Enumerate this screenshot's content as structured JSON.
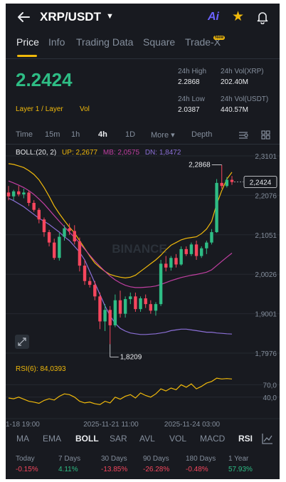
{
  "header": {
    "pair": "XRP/USDT",
    "ai_label": "Ai"
  },
  "tabs": [
    {
      "label": "Price"
    },
    {
      "label": "Info"
    },
    {
      "label": "Trading Data"
    },
    {
      "label": "Square"
    },
    {
      "label": "Trade-X"
    }
  ],
  "new_badge": "New",
  "price": {
    "last": "2.2424",
    "tag1": "Layer 1 / Layer",
    "tag2": "Vol"
  },
  "stats": {
    "high_label": "24h High",
    "high_value": "2.2868",
    "low_label": "24h Low",
    "low_value": "2.0387",
    "vol_xrp_label": "24h Vol(XRP)",
    "vol_xrp_value": "202.40M",
    "vol_usdt_label": "24h Vol(USDT)",
    "vol_usdt_value": "440.57M"
  },
  "timeframes": [
    {
      "label": "Time"
    },
    {
      "label": "15m"
    },
    {
      "label": "1h"
    },
    {
      "label": "4h"
    },
    {
      "label": "1D"
    },
    {
      "label": "More ▾"
    },
    {
      "label": "Depth"
    }
  ],
  "boll_legend": {
    "title": "BOLL:(20, 2)",
    "up": "UP: 2,2677",
    "mb": "MB: 2,0575",
    "dn": "DN: 1,8472"
  },
  "rsi_legend": "RSI(6): 84,0393",
  "watermark": "BINANCE",
  "indicators": [
    {
      "label": "MA"
    },
    {
      "label": "EMA"
    },
    {
      "label": "BOLL"
    },
    {
      "label": "SAR"
    },
    {
      "label": "AVL"
    },
    {
      "label": "VOL"
    },
    {
      "label": "MACD"
    },
    {
      "label": "RSI"
    }
  ],
  "performance": [
    {
      "label": "Today",
      "value": "-0.15%"
    },
    {
      "label": "7 Days",
      "value": "4.11%"
    },
    {
      "label": "30 Days",
      "value": "-13.85%"
    },
    {
      "label": "90 Days",
      "value": "-26.28%"
    },
    {
      "label": "180 Days",
      "value": "-0.48%"
    },
    {
      "label": "1 Year",
      "value": "57.93%"
    }
  ],
  "colors": {
    "up": "#2ebd85",
    "down": "#f6465d",
    "accent": "#f0b90b",
    "mb": "#c03fa1",
    "dn": "#8b6fd6"
  },
  "chart_data": {
    "type": "candlestick",
    "price_axis_ticks": [
      "2,3101",
      "2,2076",
      "2,1051",
      "2,0026",
      "1,9001",
      "1,7976"
    ],
    "ylim": [
      1.7976,
      2.3101
    ],
    "last_price_label": "2,2424",
    "max_label": "2,2868",
    "min_label": "1,8209",
    "rsi_axis_ticks": [
      "70,0",
      "40,0"
    ],
    "x_tick_labels": [
      "1-18 19:00",
      "2025-11-21 11:00",
      "2025-11-24 03:00"
    ],
    "candles": [
      {
        "o": 2.215,
        "h": 2.232,
        "l": 2.195,
        "c": 2.205
      },
      {
        "o": 2.205,
        "h": 2.222,
        "l": 2.195,
        "c": 2.218
      },
      {
        "o": 2.218,
        "h": 2.232,
        "l": 2.205,
        "c": 2.21
      },
      {
        "o": 2.21,
        "h": 2.225,
        "l": 2.2,
        "c": 2.215
      },
      {
        "o": 2.215,
        "h": 2.22,
        "l": 2.18,
        "c": 2.188
      },
      {
        "o": 2.188,
        "h": 2.195,
        "l": 2.165,
        "c": 2.17
      },
      {
        "o": 2.17,
        "h": 2.175,
        "l": 2.135,
        "c": 2.145
      },
      {
        "o": 2.145,
        "h": 2.15,
        "l": 2.1,
        "c": 2.112
      },
      {
        "o": 2.112,
        "h": 2.118,
        "l": 2.075,
        "c": 2.085
      },
      {
        "o": 2.085,
        "h": 2.095,
        "l": 2.04,
        "c": 2.045
      },
      {
        "o": 2.045,
        "h": 2.11,
        "l": 2.038,
        "c": 2.1
      },
      {
        "o": 2.1,
        "h": 2.13,
        "l": 2.09,
        "c": 2.122
      },
      {
        "o": 2.122,
        "h": 2.135,
        "l": 2.105,
        "c": 2.115
      },
      {
        "o": 2.115,
        "h": 2.13,
        "l": 2.08,
        "c": 2.088
      },
      {
        "o": 2.088,
        "h": 2.098,
        "l": 2.01,
        "c": 2.025
      },
      {
        "o": 2.025,
        "h": 2.04,
        "l": 1.975,
        "c": 1.985
      },
      {
        "o": 1.985,
        "h": 1.995,
        "l": 1.968,
        "c": 1.975
      },
      {
        "o": 1.975,
        "h": 1.985,
        "l": 1.935,
        "c": 1.945
      },
      {
        "o": 1.945,
        "h": 1.955,
        "l": 1.86,
        "c": 1.88
      },
      {
        "o": 1.88,
        "h": 1.925,
        "l": 1.855,
        "c": 1.91
      },
      {
        "o": 1.91,
        "h": 1.92,
        "l": 1.821,
        "c": 1.87
      },
      {
        "o": 1.87,
        "h": 1.95,
        "l": 1.865,
        "c": 1.935
      },
      {
        "o": 1.935,
        "h": 1.96,
        "l": 1.89,
        "c": 1.9
      },
      {
        "o": 1.9,
        "h": 1.945,
        "l": 1.89,
        "c": 1.938
      },
      {
        "o": 1.938,
        "h": 1.955,
        "l": 1.925,
        "c": 1.945
      },
      {
        "o": 1.945,
        "h": 1.955,
        "l": 1.905,
        "c": 1.912
      },
      {
        "o": 1.912,
        "h": 1.945,
        "l": 1.905,
        "c": 1.94
      },
      {
        "o": 1.94,
        "h": 1.95,
        "l": 1.915,
        "c": 1.925
      },
      {
        "o": 1.925,
        "h": 1.935,
        "l": 1.9,
        "c": 1.908
      },
      {
        "o": 1.908,
        "h": 1.93,
        "l": 1.895,
        "c": 1.925
      },
      {
        "o": 1.925,
        "h": 2.04,
        "l": 1.92,
        "c": 2.03
      },
      {
        "o": 2.03,
        "h": 2.05,
        "l": 2.01,
        "c": 2.02
      },
      {
        "o": 2.02,
        "h": 2.05,
        "l": 2.012,
        "c": 2.045
      },
      {
        "o": 2.045,
        "h": 2.055,
        "l": 2.02,
        "c": 2.028
      },
      {
        "o": 2.028,
        "h": 2.075,
        "l": 2.025,
        "c": 2.068
      },
      {
        "o": 2.068,
        "h": 2.075,
        "l": 2.05,
        "c": 2.055
      },
      {
        "o": 2.055,
        "h": 2.085,
        "l": 2.05,
        "c": 2.08
      },
      {
        "o": 2.08,
        "h": 2.09,
        "l": 2.04,
        "c": 2.05
      },
      {
        "o": 2.05,
        "h": 2.075,
        "l": 2.045,
        "c": 2.07
      },
      {
        "o": 2.07,
        "h": 2.09,
        "l": 2.055,
        "c": 2.085
      },
      {
        "o": 2.085,
        "h": 2.12,
        "l": 2.08,
        "c": 2.112
      },
      {
        "o": 2.112,
        "h": 2.25,
        "l": 2.11,
        "c": 2.24
      },
      {
        "o": 2.24,
        "h": 2.2868,
        "l": 2.225,
        "c": 2.232
      },
      {
        "o": 2.232,
        "h": 2.255,
        "l": 2.228,
        "c": 2.248
      },
      {
        "o": 2.248,
        "h": 2.258,
        "l": 2.235,
        "c": 2.2424
      }
    ],
    "boll_up": [
      2.29,
      2.288,
      2.284,
      2.28,
      2.272,
      2.262,
      2.248,
      2.228,
      2.205,
      2.18,
      2.16,
      2.142,
      2.125,
      2.11,
      2.09,
      2.07,
      2.05,
      2.032,
      2.02,
      2.01,
      2.002,
      1.998,
      1.995,
      1.993,
      1.995,
      2.0,
      2.01,
      2.02,
      2.03,
      2.04,
      2.052,
      2.066,
      2.078,
      2.085,
      2.092,
      2.096,
      2.098,
      2.1,
      2.108,
      2.12,
      2.14,
      2.185,
      2.22,
      2.25,
      2.2677
    ],
    "boll_mb": [
      2.245,
      2.24,
      2.234,
      2.228,
      2.22,
      2.21,
      2.198,
      2.185,
      2.17,
      2.155,
      2.14,
      2.126,
      2.112,
      2.098,
      2.084,
      2.068,
      2.052,
      2.037,
      2.023,
      2.01,
      1.998,
      1.988,
      1.98,
      1.974,
      1.97,
      1.968,
      1.968,
      1.969,
      1.97,
      1.972,
      1.976,
      1.981,
      1.986,
      1.99,
      1.994,
      1.997,
      2.0,
      2.002,
      2.005,
      2.008,
      2.014,
      2.025,
      2.036,
      2.047,
      2.0575
    ],
    "boll_dn": [
      2.2,
      2.194,
      2.186,
      2.178,
      2.168,
      2.158,
      2.148,
      2.14,
      2.132,
      2.122,
      2.112,
      2.1,
      2.09,
      2.075,
      2.06,
      2.04,
      2.01,
      1.98,
      1.95,
      1.92,
      1.895,
      1.875,
      1.862,
      1.855,
      1.85,
      1.848,
      1.846,
      1.846,
      1.847,
      1.848,
      1.85,
      1.852,
      1.856,
      1.858,
      1.86,
      1.86,
      1.858,
      1.856,
      1.854,
      1.852,
      1.852,
      1.85,
      1.849,
      1.848,
      1.8472
    ],
    "rsi_ylim": [
      0,
      100
    ],
    "rsi": [
      38,
      36,
      40,
      35,
      30,
      28,
      25,
      32,
      36,
      33,
      42,
      48,
      46,
      40,
      30,
      26,
      28,
      24,
      22,
      30,
      26,
      40,
      35,
      42,
      46,
      38,
      50,
      44,
      40,
      48,
      60,
      55,
      62,
      58,
      70,
      64,
      72,
      60,
      66,
      74,
      78,
      86,
      84,
      85,
      84.04
    ]
  }
}
